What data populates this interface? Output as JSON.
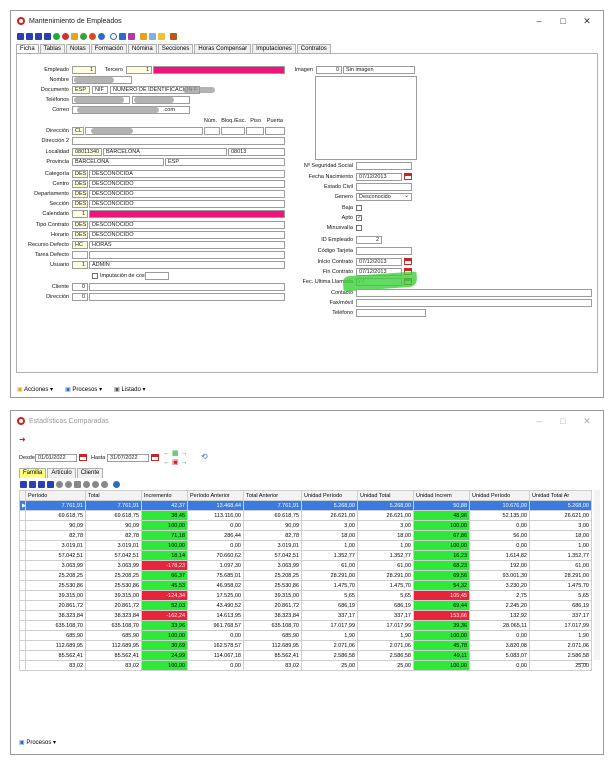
{
  "win1": {
    "title": "Mantenimiento de Empleados",
    "tabs": [
      "Ficha",
      "Tablas",
      "Notas",
      "Formación",
      "Nómina",
      "Secciones",
      "Horas Compensar",
      "Imputaciones",
      "Contratos"
    ],
    "fields": {
      "empleado_label": "Empleado",
      "empleado_value": "1",
      "tercero_label": "Tercero",
      "tercero_value": "1",
      "nombre_label": "Nombre",
      "documento_label": "Documento",
      "doc_country": "ESP",
      "doc_type": "NIF",
      "doc_desc": "NUMERO DE IDENTIFICACION F",
      "telefonos_label": "Teléfonos",
      "correo_label": "Correo",
      "correo_suffix": ".com",
      "num_label": "Núm.",
      "bloq_label": "Bloq./Esc.",
      "piso_label": "Piso",
      "puerta_label": "Puerta",
      "direccion_label": "Dirección",
      "direccion_prefix": "CL",
      "direccion2_label": "Dirección 2",
      "localidad_label": "Localidad",
      "localidad_code": "08011340",
      "localidad_name": "BARCELONA",
      "localidad_cp": "08013",
      "provincia_label": "Provincia",
      "provincia_name": "BARCELONA",
      "provincia_country": "ESP",
      "categoria_label": "Categoría",
      "categoria_code": "DES",
      "categoria_name": "DESCONOCIDA",
      "centro_label": "Centro",
      "centro_code": "DES",
      "centro_name": "DESCONOCIDO",
      "departamento_label": "Departamento",
      "departamento_code": "DES",
      "departamento_name": "DESCONOCIDO",
      "seccion_label": "Sección",
      "seccion_code": "DES",
      "seccion_name": "DESCONOCIDO",
      "calendario_label": "Calendario",
      "calendario_value": "1",
      "tipo_contrato_label": "Tipo Contrato",
      "tipo_contrato_code": "DES",
      "tipo_contrato_name": "DESCONOCIDO",
      "horario_label": "Horario",
      "horario_code": "DES",
      "horario_name": "DESCONOCIDO",
      "recurso_label": "Recurso Defecto",
      "recurso_code": "HC",
      "recurso_name": "HORAS",
      "tarea_label": "Tarea Defecto",
      "usuario_label": "Usuario",
      "usuario_code": "1",
      "usuario_name": "ADMIN",
      "imputacion_label": "Imputación de costes",
      "cliente_label": "Cliente",
      "cliente_value": "0",
      "direccion3_label": "Dirección",
      "direccion3_value": "0",
      "imagen_label": "Imagen",
      "imagen_value": "0",
      "imagen_text": "Sin imagen",
      "nss_label": "Nº Seguridad Social",
      "fecha_nac_label": "Fecha Nacimiento",
      "fecha_nac_value": "07/12/2013",
      "estado_civil_label": "Estado Civil",
      "genero_label": "Genero",
      "genero_value": "Desconocido",
      "baja_label": "Baja",
      "apto_label": "Apto",
      "minusvalia_label": "Minusvalía",
      "id_empleado_label": "ID Empleado",
      "id_empleado_value": "2",
      "codigo_tarjeta_label": "Código Tarjeta",
      "inicio_contrato_label": "Inicio Contrato",
      "inicio_contrato_value": "07/12/2013",
      "fin_contrato_label": "Fin Contrato",
      "fin_contrato_value": "07/12/2013",
      "fec_ultima_label": "Fec. Ultima Llamada",
      "fec_ultima_value": "/ /",
      "contacto_label": "Contacto",
      "fax_label": "Fax/móvil",
      "telefono_label": "Teléfono"
    },
    "bottom": [
      "Acciones",
      "Procesos",
      "Listado"
    ]
  },
  "win2": {
    "title": "Estadísticas Comparadas",
    "desde_label": "Desde",
    "desde_value": "01/01/2022",
    "hasta_label": "Hasta",
    "hasta_value": "31/07/2022",
    "tabs": [
      "Familia",
      "Artículo",
      "Cliente"
    ],
    "headers": [
      "Período",
      "Total",
      "Incremento",
      "Período Anterior",
      "Total Anterior",
      "Unidad Período",
      "Unidad Total",
      "Unidad Increm",
      "Unidad Período",
      "Unidad Total Ar"
    ],
    "rows": [
      [
        "7.761,91",
        "7.761,91",
        "42,37",
        "13.468,44",
        "7.761,91",
        "5.268,00",
        "5.268,00",
        "50,88",
        "10.676,00",
        "5.268,00"
      ],
      [
        "69.618,75",
        "69.618,75",
        "38,45",
        "113.116,00",
        "69.618,75",
        "26.621,00",
        "26.621,00",
        "48,96",
        "52.135,00",
        "26.621,00"
      ],
      [
        "90,09",
        "90,09",
        "100,00",
        "0,00",
        "90,09",
        "3,00",
        "3,00",
        "100,00",
        "0,00",
        "3,00"
      ],
      [
        "82,78",
        "82,78",
        "71,18",
        "286,44",
        "82,78",
        "18,00",
        "18,00",
        "67,86",
        "56,00",
        "18,00"
      ],
      [
        "3.019,01",
        "3.019,01",
        "100,00",
        "0,00",
        "3.019,01",
        "1,00",
        "1,00",
        "100,00",
        "0,00",
        "1,00"
      ],
      [
        "57.042,51",
        "57.042,51",
        "18,14",
        "70.660,62",
        "57.042,51",
        "1.352,77",
        "1.352,77",
        "16,23",
        "1.614,82",
        "1.352,77"
      ],
      [
        "3.063,99",
        "3.063,99",
        "-178,23",
        "1.097,30",
        "3.063,99",
        "61,00",
        "61,00",
        "68,23",
        "192,00",
        "61,00"
      ],
      [
        "25.208,25",
        "25.208,25",
        "66,37",
        "75.685,01",
        "25.208,25",
        "28.291,00",
        "28.291,00",
        "69,56",
        "93.001,30",
        "28.291,00"
      ],
      [
        "25.530,86",
        "25.530,86",
        "45,53",
        "46.958,02",
        "25.530,86",
        "1.475,70",
        "1.475,70",
        "54,32",
        "3.230,20",
        "1.475,70"
      ],
      [
        "39.315,00",
        "39.315,00",
        "-124,34",
        "17.525,00",
        "39.315,00",
        "5,65",
        "5,65",
        "105,45",
        "2,75",
        "5,65"
      ],
      [
        "20.861,72",
        "20.861,72",
        "52,03",
        "43.490,52",
        "20.861,72",
        "686,19",
        "686,19",
        "69,44",
        "2.245,20",
        "686,19"
      ],
      [
        "38.323,84",
        "38.323,84",
        "-162,24",
        "14.613,95",
        "38.323,84",
        "337,17",
        "337,17",
        "153,66",
        "132,92",
        "337,17"
      ],
      [
        "635.108,70",
        "635.108,70",
        "33,96",
        "961.768,57",
        "635.108,70",
        "17.017,99",
        "17.017,99",
        "39,36",
        "28.065,11",
        "17.017,99"
      ],
      [
        "685,90",
        "685,90",
        "100,00",
        "0,00",
        "685,90",
        "1,90",
        "1,90",
        "100,00",
        "0,00",
        "1,90"
      ],
      [
        "112.689,95",
        "112.689,95",
        "30,69",
        "162.578,57",
        "112.689,95",
        "2.071,06",
        "2.071,06",
        "45,78",
        "3.820,08",
        "2.071,06"
      ],
      [
        "85.562,41",
        "85.562,41",
        "24,99",
        "114.067,18",
        "85.562,41",
        "2.586,58",
        "2.586,58",
        "49,11",
        "5.083,07",
        "2.586,58"
      ],
      [
        "83,02",
        "83,02",
        "100,00",
        "0,00",
        "83,02",
        "25,00",
        "25,00",
        "100,00",
        "0,00",
        "25,00"
      ]
    ],
    "bottom": "Procesos"
  }
}
